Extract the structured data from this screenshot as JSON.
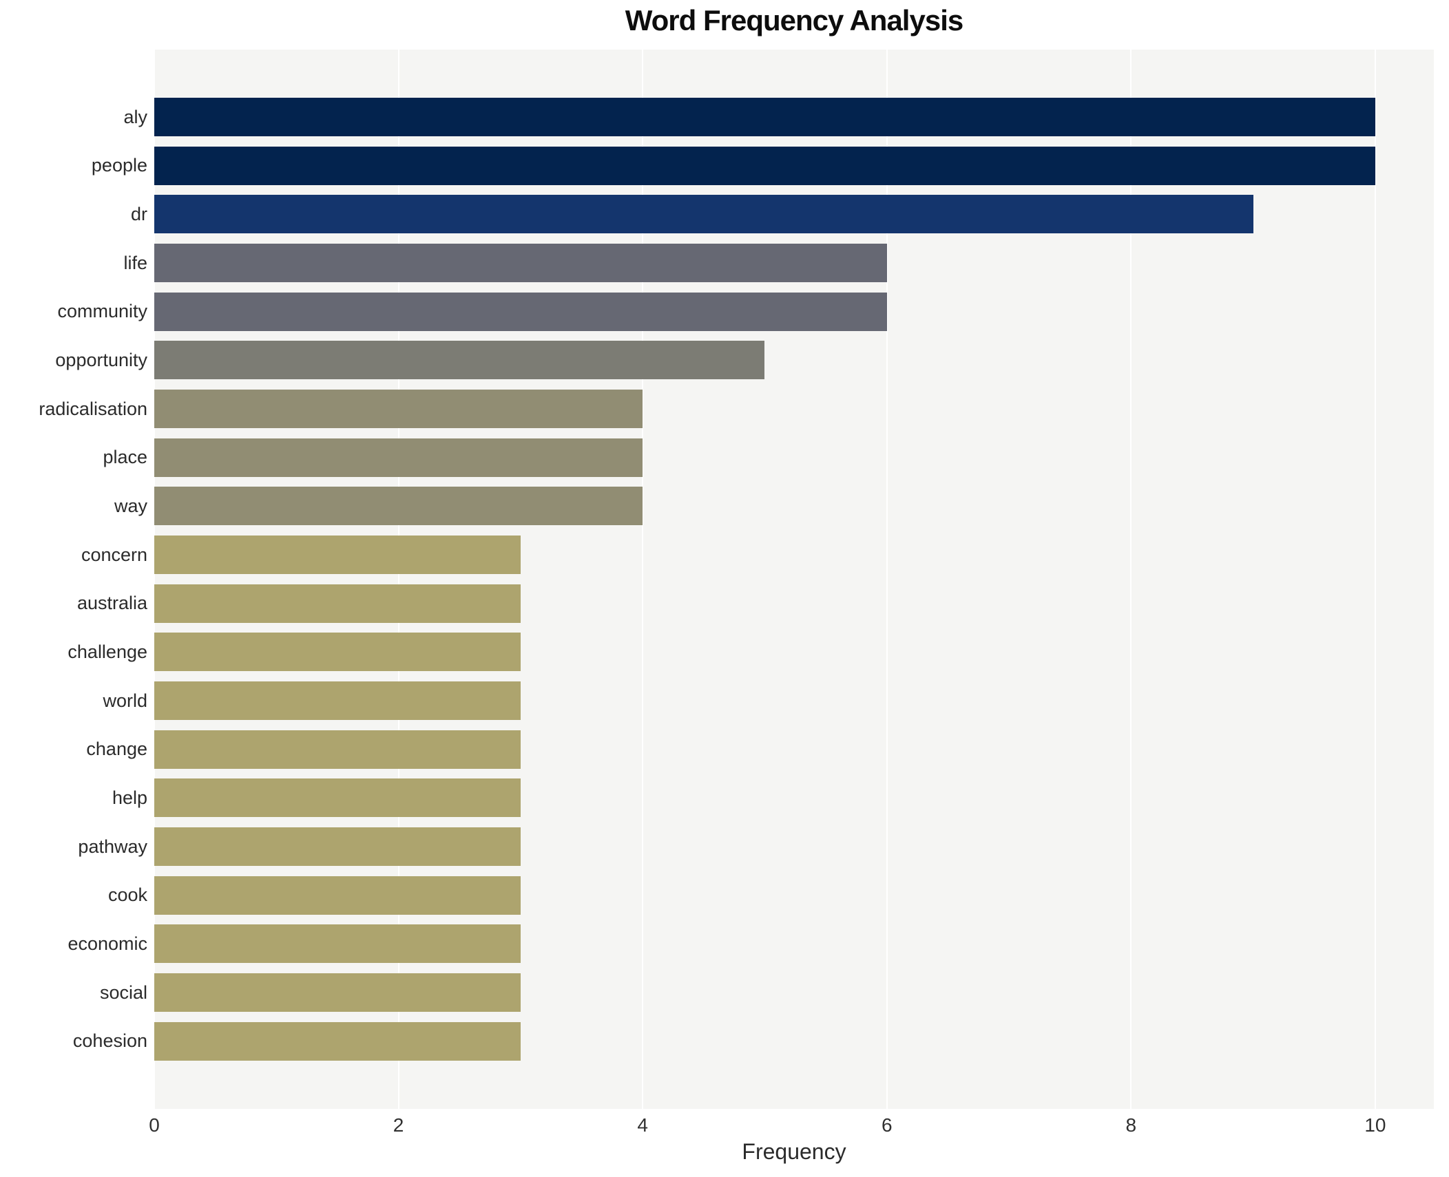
{
  "title": "Word Frequency Analysis",
  "chart_data": {
    "type": "bar",
    "orientation": "horizontal",
    "title": "Word Frequency Analysis",
    "xlabel": "Frequency",
    "ylabel": "",
    "xlim": [
      0,
      10.48
    ],
    "xticks": [
      0,
      2,
      4,
      6,
      8,
      10
    ],
    "grid": true,
    "legend": false,
    "categories": [
      "aly",
      "people",
      "dr",
      "life",
      "community",
      "opportunity",
      "radicalisation",
      "place",
      "way",
      "concern",
      "australia",
      "challenge",
      "world",
      "change",
      "help",
      "pathway",
      "cook",
      "economic",
      "social",
      "cohesion"
    ],
    "values": [
      10,
      10,
      9,
      6,
      6,
      5,
      4,
      4,
      4,
      3,
      3,
      3,
      3,
      3,
      3,
      3,
      3,
      3,
      3,
      3
    ],
    "bar_colors": [
      "#03234e",
      "#03234e",
      "#14356d",
      "#666873",
      "#666873",
      "#7c7c74",
      "#918d73",
      "#918d73",
      "#918d73",
      "#ada46e",
      "#ada46e",
      "#ada46e",
      "#ada46e",
      "#ada46e",
      "#ada46e",
      "#ada46e",
      "#ada46e",
      "#ada46e",
      "#ada46e",
      "#ada46e"
    ],
    "colors": {
      "plot_background": "#f5f5f3",
      "figure_background": "#ffffff",
      "grid_color": "#ffffff",
      "label_color": "#2b2b2b",
      "tick_color": "#303030",
      "title_color": "#0d0d0d"
    }
  }
}
